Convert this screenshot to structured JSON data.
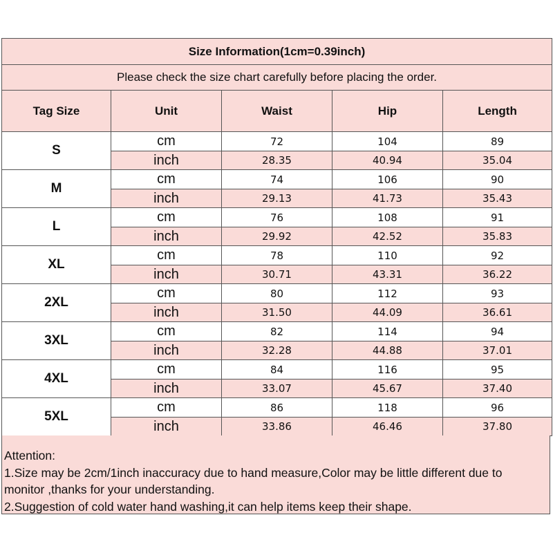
{
  "title": "Size Information(1cm=0.39inch)",
  "subtitle": "Please check the size chart carefully before placing the order.",
  "headers": [
    "Tag Size",
    "Unit",
    "Waist",
    "Hip",
    "Length"
  ],
  "units": [
    "cm",
    "inch"
  ],
  "pink_color": "#fadbd8",
  "rows": [
    {
      "size": "S",
      "cm": [
        "72",
        "104",
        "89"
      ],
      "inch": [
        "28.35",
        "40.94",
        "35.04"
      ]
    },
    {
      "size": "M",
      "cm": [
        "74",
        "106",
        "90"
      ],
      "inch": [
        "29.13",
        "41.73",
        "35.43"
      ]
    },
    {
      "size": "L",
      "cm": [
        "76",
        "108",
        "91"
      ],
      "inch": [
        "29.92",
        "42.52",
        "35.83"
      ]
    },
    {
      "size": "XL",
      "cm": [
        "78",
        "110",
        "92"
      ],
      "inch": [
        "30.71",
        "43.31",
        "36.22"
      ]
    },
    {
      "size": "2XL",
      "cm": [
        "80",
        "112",
        "93"
      ],
      "inch": [
        "31.50",
        "44.09",
        "36.61"
      ]
    },
    {
      "size": "3XL",
      "cm": [
        "82",
        "114",
        "94"
      ],
      "inch": [
        "32.28",
        "44.88",
        "37.01"
      ]
    },
    {
      "size": "4XL",
      "cm": [
        "84",
        "116",
        "95"
      ],
      "inch": [
        "33.07",
        "45.67",
        "37.40"
      ]
    },
    {
      "size": "5XL",
      "cm": [
        "86",
        "118",
        "96"
      ],
      "inch": [
        "33.86",
        "46.46",
        "37.80"
      ]
    }
  ],
  "attention": {
    "heading": "Attention:",
    "lines": [
      "1.Size may be 2cm/1inch inaccuracy due to hand measure,Color may be little different due to",
      "monitor ,thanks for your understanding.",
      "2.Suggestion of cold water hand washing,it can help items keep their shape."
    ]
  }
}
